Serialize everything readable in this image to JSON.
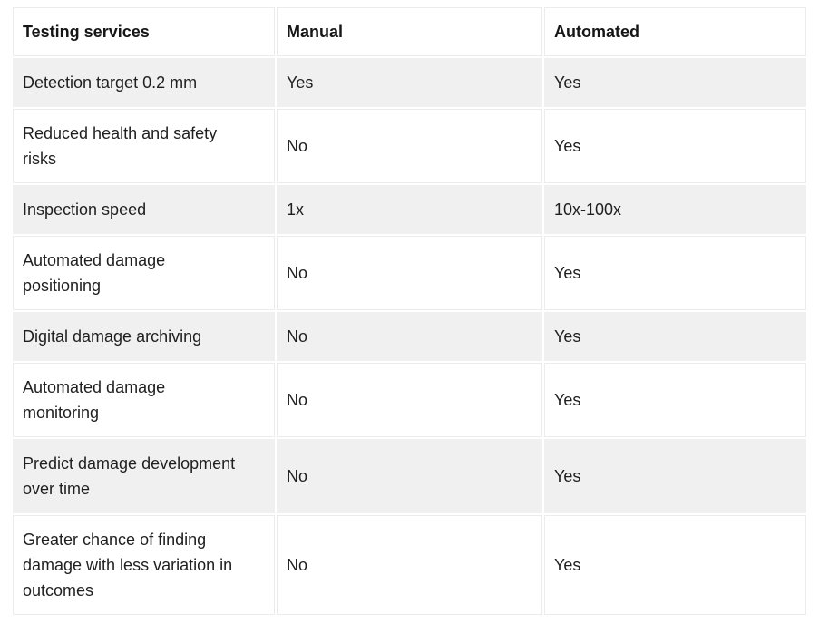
{
  "page": {
    "background_color": "#ffffff"
  },
  "table": {
    "columns": [
      {
        "key": "service",
        "label": "Testing services"
      },
      {
        "key": "manual",
        "label": "Manual"
      },
      {
        "key": "automated",
        "label": "Automated"
      }
    ],
    "rows": [
      {
        "service": "Detection target 0.2 mm",
        "manual": "Yes",
        "automated": "Yes"
      },
      {
        "service": "Reduced health and safety\nrisks",
        "manual": "No",
        "automated": "Yes"
      },
      {
        "service": "Inspection speed",
        "manual": "1x",
        "automated": "10x-100x"
      },
      {
        "service": "Automated damage\npositioning",
        "manual": "No",
        "automated": "Yes"
      },
      {
        "service": "Digital damage archiving",
        "manual": "No",
        "automated": "Yes"
      },
      {
        "service": "Automated damage\nmonitoring",
        "manual": "No",
        "automated": "Yes"
      },
      {
        "service": "Predict damage development\nover time",
        "manual": "No",
        "automated": "Yes"
      },
      {
        "service": "Greater chance of finding\ndamage with less variation in\noutcomes",
        "manual": "No",
        "automated": "Yes"
      }
    ],
    "style": {
      "stripe_color": "#f0f0f0",
      "border_color": "#ececec",
      "header_text_color": "#161616",
      "body_text_color": "#1f1f1f"
    }
  }
}
